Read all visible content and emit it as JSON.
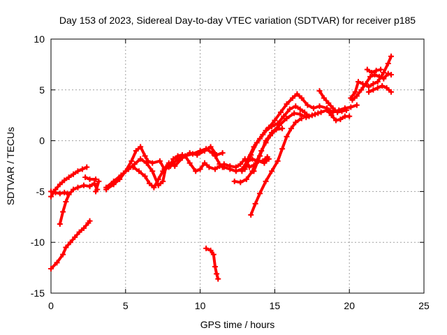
{
  "chart_data": {
    "type": "scatter",
    "title": "Day 153 of 2023, Sidereal Day-to-day VTEC variation (SDTVAR) for receiver p185",
    "xlabel": "GPS time / hours",
    "ylabel": "SDTVAR / TECUs",
    "xlim": [
      0,
      25
    ],
    "ylim": [
      -15,
      10
    ],
    "xticks": [
      "0",
      "5",
      "10",
      "15",
      "20",
      "25"
    ],
    "yticks": [
      "-15",
      "-10",
      "-5",
      "0",
      "5",
      "10"
    ],
    "xtick_values": [
      0,
      5,
      10,
      15,
      20,
      25
    ],
    "ytick_values": [
      -15,
      -10,
      -5,
      0,
      5,
      10
    ],
    "grid": true,
    "marker": "+",
    "color": "#ff0000",
    "series": [
      {
        "points": [
          [
            0.0,
            -12.6
          ],
          [
            0.4,
            -12.0
          ],
          [
            0.8,
            -11.2
          ],
          [
            1.0,
            -10.5
          ],
          [
            1.3,
            -10.0
          ],
          [
            1.6,
            -9.5
          ],
          [
            1.9,
            -9.0
          ],
          [
            2.2,
            -8.6
          ],
          [
            2.5,
            -8.1
          ],
          [
            2.6,
            -7.9
          ]
        ]
      },
      {
        "points": [
          [
            0.0,
            -5.5
          ],
          [
            0.3,
            -4.8
          ],
          [
            0.6,
            -4.3
          ],
          [
            0.9,
            -3.9
          ],
          [
            1.2,
            -3.6
          ],
          [
            1.5,
            -3.3
          ],
          [
            1.8,
            -3.0
          ],
          [
            2.1,
            -2.8
          ],
          [
            2.4,
            -2.6
          ]
        ]
      },
      {
        "points": [
          [
            0.0,
            -5.0
          ],
          [
            0.3,
            -5.1
          ],
          [
            0.6,
            -5.2
          ],
          [
            0.9,
            -5.1
          ],
          [
            1.1,
            -5.2
          ]
        ]
      },
      {
        "points": [
          [
            0.6,
            -8.2
          ],
          [
            0.8,
            -7.0
          ],
          [
            1.0,
            -6.0
          ],
          [
            1.2,
            -5.3
          ],
          [
            1.5,
            -4.8
          ],
          [
            1.8,
            -4.6
          ],
          [
            2.2,
            -4.4
          ],
          [
            2.6,
            -4.5
          ],
          [
            2.9,
            -4.2
          ],
          [
            3.1,
            -4.8
          ],
          [
            3.0,
            -5.0
          ],
          [
            3.2,
            -4.0
          ]
        ]
      },
      {
        "points": [
          [
            2.3,
            -3.6
          ],
          [
            2.6,
            -3.8
          ],
          [
            3.0,
            -3.8
          ]
        ]
      },
      {
        "points": [
          [
            3.7,
            -4.6
          ],
          [
            4.2,
            -4.0
          ],
          [
            4.7,
            -3.4
          ],
          [
            5.2,
            -2.8
          ],
          [
            5.6,
            -2.3
          ],
          [
            6.0,
            -1.8
          ],
          [
            6.4,
            -2.2
          ],
          [
            6.8,
            -3.0
          ],
          [
            7.2,
            -4.4
          ],
          [
            7.5,
            -4.0
          ],
          [
            7.7,
            -2.6
          ],
          [
            8.0,
            -2.5
          ],
          [
            8.5,
            -1.8
          ],
          [
            9.0,
            -1.5
          ],
          [
            9.5,
            -1.3
          ],
          [
            10.0,
            -1.0
          ],
          [
            10.4,
            -0.8
          ],
          [
            10.8,
            -1.2
          ],
          [
            11.0,
            -1.5
          ],
          [
            11.3,
            -2.3
          ],
          [
            11.5,
            -2.6
          ]
        ]
      },
      {
        "points": [
          [
            3.7,
            -4.8
          ],
          [
            4.2,
            -4.3
          ],
          [
            4.6,
            -3.8
          ],
          [
            5.0,
            -3.0
          ],
          [
            5.4,
            -2.0
          ],
          [
            5.7,
            -1.0
          ],
          [
            6.0,
            -0.6
          ],
          [
            6.3,
            -1.5
          ],
          [
            6.5,
            -2.0
          ],
          [
            6.8,
            -2.2
          ],
          [
            7.3,
            -2.0
          ],
          [
            7.6,
            -2.8
          ],
          [
            7.9,
            -2.6
          ],
          [
            8.2,
            -1.8
          ],
          [
            8.5,
            -1.5
          ],
          [
            8.8,
            -1.4
          ],
          [
            9.0,
            -1.5
          ],
          [
            9.3,
            -2.2
          ],
          [
            9.7,
            -3.0
          ],
          [
            10.0,
            -2.8
          ],
          [
            10.3,
            -2.2
          ],
          [
            10.6,
            -2.6
          ],
          [
            11.0,
            -2.8
          ],
          [
            11.3,
            -2.5
          ]
        ]
      },
      {
        "points": [
          [
            5.5,
            -2.6
          ],
          [
            5.9,
            -3.0
          ],
          [
            6.3,
            -3.5
          ],
          [
            6.6,
            -4.2
          ],
          [
            6.9,
            -4.6
          ],
          [
            7.2,
            -3.8
          ],
          [
            7.5,
            -3.0
          ],
          [
            7.9,
            -2.2
          ],
          [
            8.3,
            -2.5
          ],
          [
            8.8,
            -1.7
          ],
          [
            9.3,
            -1.2
          ],
          [
            9.8,
            -1.4
          ],
          [
            10.3,
            -1.0
          ],
          [
            10.7,
            -0.6
          ],
          [
            11.1,
            -1.4
          ],
          [
            11.5,
            -1.2
          ]
        ]
      },
      {
        "points": [
          [
            10.4,
            -10.6
          ],
          [
            10.7,
            -10.8
          ],
          [
            10.9,
            -11.2
          ],
          [
            11.0,
            -12.4
          ],
          [
            11.1,
            -13.1
          ],
          [
            11.2,
            -13.6
          ]
        ]
      },
      {
        "points": [
          [
            11.6,
            -2.6
          ],
          [
            12.0,
            -2.8
          ],
          [
            12.4,
            -3.0
          ],
          [
            12.8,
            -2.8
          ],
          [
            13.2,
            -2.0
          ],
          [
            13.5,
            -1.8
          ],
          [
            13.8,
            -2.0
          ],
          [
            14.2,
            -2.0
          ],
          [
            14.5,
            -1.6
          ]
        ]
      },
      {
        "points": [
          [
            11.6,
            -2.3
          ],
          [
            12.0,
            -2.5
          ],
          [
            12.4,
            -2.6
          ],
          [
            12.7,
            -2.3
          ],
          [
            13.0,
            -1.8
          ],
          [
            13.3,
            -2.6
          ],
          [
            13.6,
            -2.4
          ],
          [
            13.9,
            -2.0
          ],
          [
            14.3,
            -2.2
          ],
          [
            14.6,
            -1.8
          ]
        ]
      },
      {
        "points": [
          [
            12.3,
            -4.0
          ],
          [
            12.7,
            -4.1
          ],
          [
            13.1,
            -3.8
          ],
          [
            13.5,
            -3.0
          ],
          [
            13.8,
            -2.0
          ],
          [
            14.1,
            -1.0
          ],
          [
            14.4,
            -0.2
          ],
          [
            14.7,
            0.5
          ],
          [
            15.1,
            1.1
          ],
          [
            15.5,
            1.2
          ]
        ]
      },
      {
        "points": [
          [
            12.8,
            -3.0
          ],
          [
            13.2,
            -1.8
          ],
          [
            13.6,
            -0.6
          ],
          [
            14.0,
            0.2
          ],
          [
            14.4,
            1.0
          ],
          [
            14.8,
            1.4
          ],
          [
            15.2,
            1.7
          ],
          [
            15.6,
            2.4
          ],
          [
            16.0,
            3.1
          ],
          [
            16.4,
            3.4
          ],
          [
            16.7,
            3.1
          ],
          [
            17.0,
            2.8
          ],
          [
            17.3,
            2.4
          ],
          [
            17.7,
            2.6
          ],
          [
            18.1,
            2.8
          ],
          [
            18.5,
            3.0
          ],
          [
            18.8,
            2.5
          ],
          [
            19.1,
            2.0
          ],
          [
            19.4,
            2.1
          ],
          [
            19.7,
            2.4
          ],
          [
            20.0,
            2.4
          ]
        ]
      },
      {
        "points": [
          [
            13.0,
            -2.8
          ],
          [
            13.4,
            -1.4
          ],
          [
            13.8,
            -0.2
          ],
          [
            14.2,
            0.6
          ],
          [
            14.6,
            1.3
          ],
          [
            15.0,
            2.0
          ],
          [
            15.4,
            2.8
          ],
          [
            15.8,
            3.6
          ],
          [
            16.2,
            4.2
          ],
          [
            16.5,
            4.6
          ],
          [
            16.8,
            4.2
          ],
          [
            17.2,
            3.5
          ],
          [
            17.6,
            3.2
          ],
          [
            18.0,
            3.4
          ],
          [
            18.5,
            3.2
          ],
          [
            18.9,
            2.8
          ],
          [
            19.3,
            3.0
          ],
          [
            19.7,
            3.2
          ],
          [
            20.1,
            3.3
          ],
          [
            20.5,
            3.5
          ]
        ]
      },
      {
        "points": [
          [
            13.4,
            -7.3
          ],
          [
            13.7,
            -6.2
          ],
          [
            14.0,
            -5.2
          ],
          [
            14.4,
            -4.0
          ],
          [
            14.8,
            -3.0
          ],
          [
            15.2,
            -2.0
          ],
          [
            15.5,
            -0.8
          ],
          [
            15.8,
            0.4
          ],
          [
            16.1,
            1.2
          ],
          [
            16.4,
            1.8
          ],
          [
            16.8,
            2.2
          ]
        ]
      },
      {
        "points": [
          [
            13.6,
            -3.0
          ],
          [
            14.0,
            -1.5
          ],
          [
            14.4,
            0.0
          ],
          [
            14.8,
            0.8
          ],
          [
            15.3,
            1.5
          ],
          [
            15.8,
            2.2
          ],
          [
            16.3,
            2.7
          ],
          [
            16.7,
            2.6
          ],
          [
            17.1,
            2.3
          ],
          [
            17.5,
            2.5
          ],
          [
            17.9,
            2.7
          ]
        ]
      },
      {
        "points": [
          [
            18.0,
            4.9
          ],
          [
            18.3,
            4.2
          ],
          [
            18.6,
            3.7
          ],
          [
            18.9,
            3.2
          ],
          [
            19.2,
            2.8
          ],
          [
            19.5,
            2.9
          ],
          [
            19.8,
            3.0
          ]
        ]
      },
      {
        "points": [
          [
            20.2,
            4.0
          ],
          [
            20.5,
            4.4
          ],
          [
            20.8,
            5.0
          ],
          [
            21.1,
            5.6
          ],
          [
            21.4,
            6.3
          ],
          [
            21.7,
            6.5
          ],
          [
            22.0,
            6.3
          ],
          [
            22.3,
            6.1
          ],
          [
            22.6,
            6.6
          ],
          [
            22.8,
            6.5
          ]
        ]
      },
      {
        "points": [
          [
            20.1,
            4.2
          ],
          [
            20.4,
            4.8
          ],
          [
            20.6,
            5.8
          ],
          [
            20.9,
            5.6
          ],
          [
            21.3,
            5.3
          ],
          [
            21.6,
            5.6
          ],
          [
            21.9,
            5.8
          ],
          [
            22.3,
            6.7
          ],
          [
            22.6,
            7.6
          ],
          [
            22.8,
            8.3
          ]
        ]
      },
      {
        "points": [
          [
            21.3,
            4.8
          ],
          [
            21.6,
            5.0
          ],
          [
            21.9,
            5.2
          ],
          [
            22.2,
            5.4
          ],
          [
            22.5,
            5.2
          ],
          [
            22.8,
            4.8
          ]
        ]
      },
      {
        "points": [
          [
            21.2,
            7.0
          ],
          [
            21.5,
            6.7
          ],
          [
            21.8,
            6.9
          ],
          [
            22.1,
            7.0
          ]
        ]
      }
    ]
  }
}
